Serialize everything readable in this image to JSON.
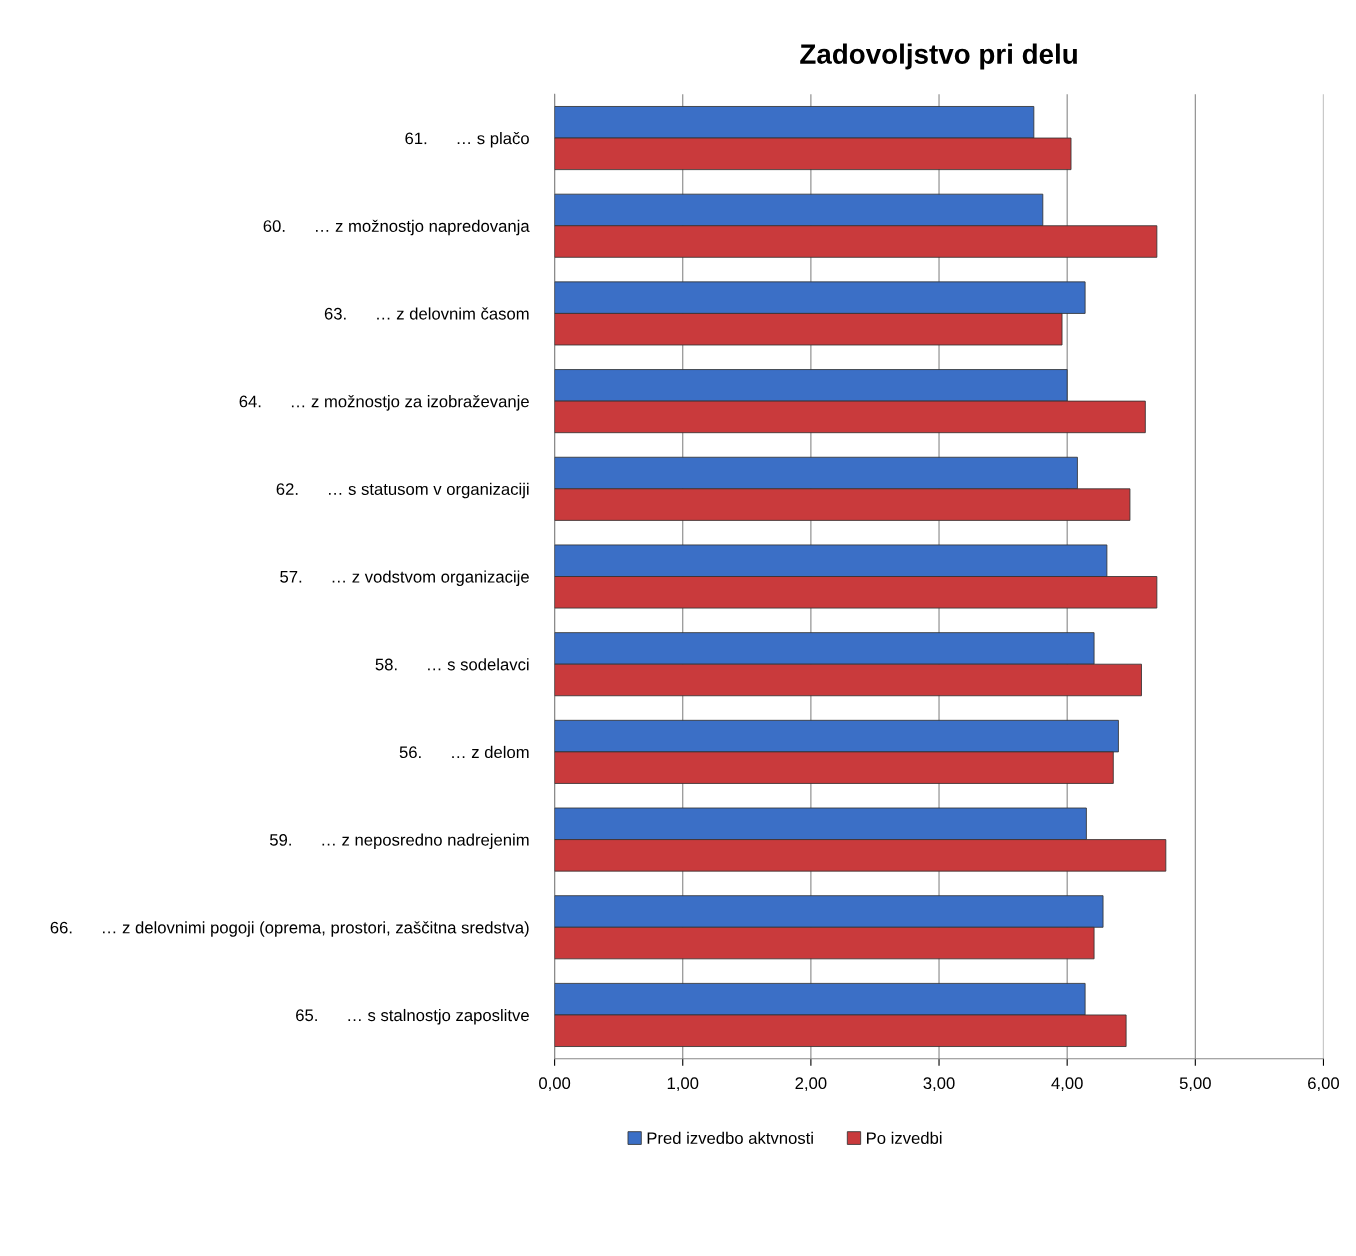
{
  "chart_data": {
    "type": "bar",
    "orientation": "horizontal",
    "title": "Zadovoljstvo pri delu",
    "categories": [
      "61.      … s plačo",
      "60.      … z možnostjo napredovanja",
      "63.      … z delovnim časom",
      "64.      … z možnostjo za izobraževanje",
      "62.      … s statusom v organizaciji",
      "57.      … z vodstvom organizacije",
      "58.      … s sodelavci",
      "56.      … z delom",
      "59.      … z neposredno nadrejenim",
      "66.      … z delovnimi pogoji (oprema, prostori, zaščitna sredstva)",
      "65.      … s stalnostjo zaposlitve"
    ],
    "series": [
      {
        "name": "Pred izvedbo aktvnosti",
        "color": "#3b6fc6",
        "values": [
          3.74,
          3.81,
          4.14,
          4.0,
          4.08,
          4.31,
          4.21,
          4.4,
          4.15,
          4.28,
          4.14
        ]
      },
      {
        "name": "Po izvedbi",
        "color": "#c93a3c",
        "values": [
          4.03,
          4.7,
          3.96,
          4.61,
          4.49,
          4.7,
          4.58,
          4.36,
          4.77,
          4.21,
          4.46
        ]
      }
    ],
    "xlim": [
      0,
      6
    ],
    "xticks": [
      {
        "value": 0,
        "label": "0,00"
      },
      {
        "value": 1,
        "label": "1,00"
      },
      {
        "value": 2,
        "label": "2,00"
      },
      {
        "value": 3,
        "label": "3,00"
      },
      {
        "value": 4,
        "label": "4,00"
      },
      {
        "value": 5,
        "label": "5,00"
      },
      {
        "value": 6,
        "label": "6,00"
      }
    ],
    "grid": "x",
    "legend": "bottom"
  }
}
